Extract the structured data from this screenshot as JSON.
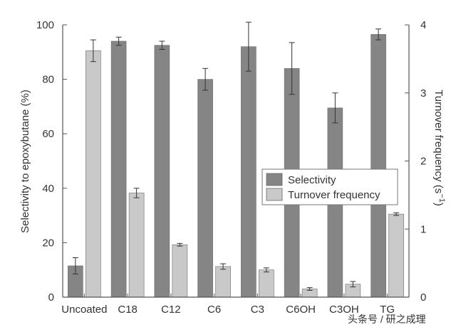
{
  "chart_data": {
    "type": "bar",
    "categories": [
      "Uncoated",
      "C18",
      "C12",
      "C6",
      "C3",
      "C6OH",
      "C3OH",
      "TG"
    ],
    "series": [
      {
        "name": "Selectivity",
        "axis": "left",
        "color": "#858585",
        "values": [
          11.5,
          94,
          92.5,
          80,
          92,
          84,
          69.5,
          96.5
        ],
        "errors": [
          3,
          1.5,
          1.5,
          4,
          9,
          9.5,
          5.5,
          2
        ]
      },
      {
        "name": "Turnover frequency",
        "axis": "right",
        "color": "#c9c9c9",
        "values": [
          3.62,
          1.53,
          0.77,
          0.45,
          0.4,
          0.12,
          0.19,
          1.22
        ],
        "errors": [
          0.16,
          0.07,
          0.02,
          0.04,
          0.03,
          0.02,
          0.04,
          0.02
        ]
      }
    ],
    "y_left": {
      "label": "Selectivity to epoxybutane (%)",
      "ylim": [
        0,
        100
      ],
      "ticks": [
        0,
        20,
        40,
        60,
        80,
        100
      ]
    },
    "y_right": {
      "label_prefix": "Turnover frequency (s",
      "label_sup": "−1",
      "label_suffix": ")",
      "ylim": [
        0,
        4
      ],
      "ticks": [
        0,
        1,
        2,
        3,
        4
      ]
    },
    "legend_position": "right-middle",
    "grid": false
  },
  "watermark": "头条号 / 研之成理"
}
